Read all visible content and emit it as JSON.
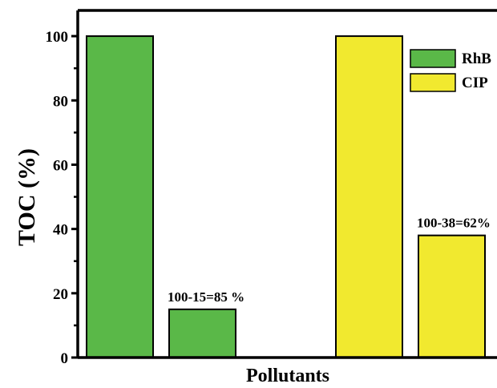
{
  "chart_data": {
    "type": "bar",
    "xlabel": "Pollutants",
    "ylabel": "TOC (%)",
    "ylim": [
      0,
      108
    ],
    "yticks": [
      0,
      20,
      40,
      60,
      80,
      100
    ],
    "grid": false,
    "legend_position": "top-right",
    "series": [
      {
        "name": "RhB",
        "color": "#5ab848",
        "values": [
          100,
          15
        ],
        "annotation": "100-15=85 %"
      },
      {
        "name": "CIP",
        "color": "#f1e92f",
        "values": [
          100,
          38
        ],
        "annotation": "100-38=62%"
      }
    ]
  }
}
